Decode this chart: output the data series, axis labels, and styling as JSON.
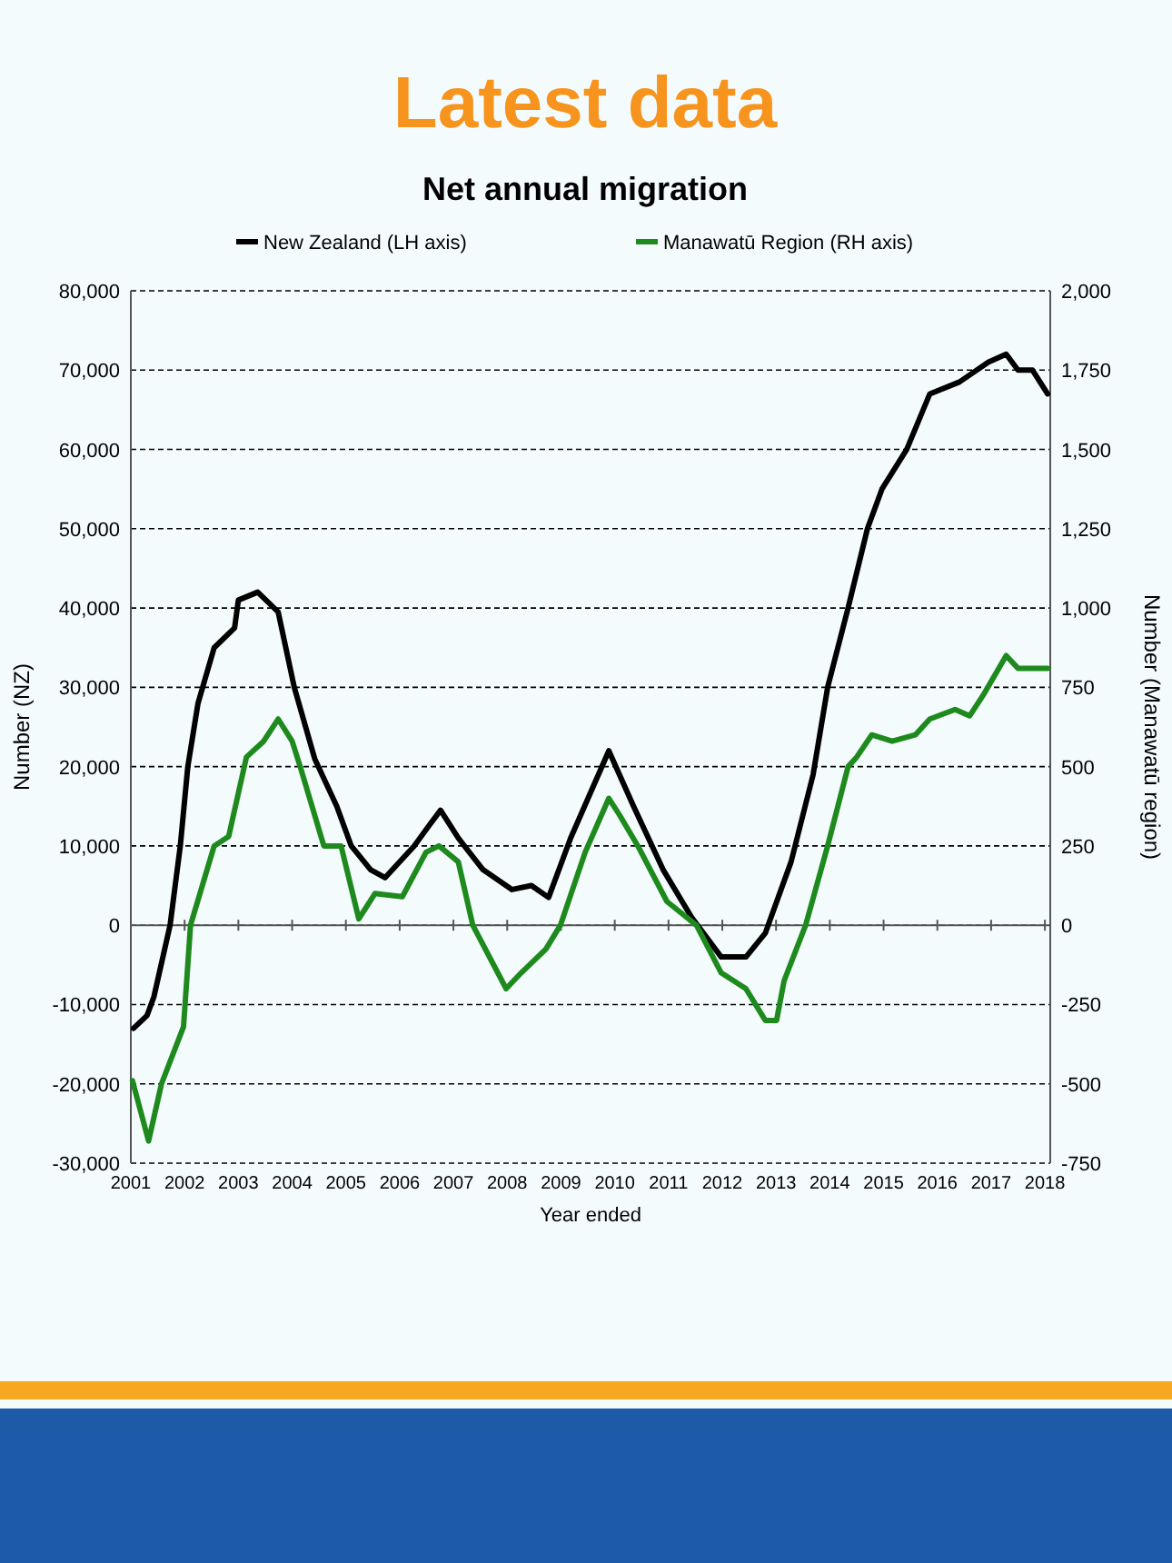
{
  "chart_data": {
    "type": "line",
    "title": "Latest data",
    "subtitle": "Net annual migration",
    "xlabel": "Year ended",
    "ylabel": "Number (NZ)",
    "y2label": "Number (Manawatū region)",
    "legend": "top",
    "grid": "y",
    "xlim": [
      2001,
      2018.1
    ],
    "xticks": [
      2001,
      2002,
      2003,
      2004,
      2005,
      2006,
      2007,
      2008,
      2009,
      2010,
      2011,
      2012,
      2013,
      2014,
      2015,
      2016,
      2017,
      2018
    ],
    "ylim": [
      -30000,
      80000
    ],
    "yticks": [
      {
        "value": -30000,
        "label": "-30,000"
      },
      {
        "value": -20000,
        "label": "-20,000"
      },
      {
        "value": -10000,
        "label": "-10,000"
      },
      0,
      {
        "value": 10000,
        "label": "10,000"
      },
      {
        "value": 20000,
        "label": "20,000"
      },
      {
        "value": 30000,
        "label": "30,000"
      },
      {
        "value": 40000,
        "label": "40,000"
      },
      {
        "value": 50000,
        "label": "50,000"
      },
      {
        "value": 60000,
        "label": "60,000"
      },
      {
        "value": 70000,
        "label": "70,000"
      },
      {
        "value": 80000,
        "label": "80,000"
      }
    ],
    "y2lim": [
      -750,
      2000
    ],
    "y2ticks": [
      -750,
      -500,
      -250,
      0,
      250,
      500,
      750,
      {
        "value": 1000,
        "label": "1,000"
      },
      {
        "value": 1250,
        "label": "1,250"
      },
      {
        "value": 1500,
        "label": "1,500"
      },
      {
        "value": 1750,
        "label": "1,750"
      },
      {
        "value": 2000,
        "label": "2,000"
      }
    ],
    "series": [
      {
        "name": "New Zealand (LH axis)",
        "color": "#000000",
        "x": [
          2001.05,
          2001.3,
          2001.43,
          2001.73,
          2001.92,
          2002.06,
          2002.25,
          2002.55,
          2002.93,
          2003.0,
          2003.36,
          2003.74,
          2004.04,
          2004.42,
          2004.83,
          2005.1,
          2005.46,
          2005.73,
          2006.27,
          2006.54,
          2006.76,
          2007.09,
          2007.55,
          2008.09,
          2008.45,
          2008.77,
          2009.18,
          2009.89,
          2010.35,
          2010.9,
          2011.43,
          2011.98,
          2012.44,
          2012.8,
          2013.28,
          2013.69,
          2013.96,
          2014.34,
          2014.7,
          2014.97,
          2015.43,
          2015.86,
          2016.41,
          2016.95,
          2017.28,
          2017.5,
          2017.77,
          2018.05
        ],
        "values": [
          -13000,
          -11400,
          -9000,
          0,
          10000,
          20000,
          28000,
          35000,
          37500,
          41000,
          42000,
          39500,
          30000,
          21000,
          15000,
          10000,
          7000,
          6000,
          10000,
          12500,
          14500,
          11000,
          7000,
          4500,
          5000,
          3500,
          11000,
          22000,
          15000,
          7000,
          1000,
          -4000,
          -4000,
          -1000,
          8000,
          19000,
          30000,
          40000,
          50000,
          55000,
          60000,
          67000,
          68500,
          71000,
          72000,
          70000,
          70000,
          67000
        ]
      },
      {
        "name": "Manawatū Region (RH axis)",
        "color": "#1e8a1e",
        "axis": "y2",
        "x": [
          2001.03,
          2001.33,
          2001.57,
          2001.98,
          2002.11,
          2002.55,
          2002.82,
          2003.15,
          2003.47,
          2003.74,
          2004.0,
          2004.15,
          2004.59,
          2004.91,
          2005.24,
          2005.54,
          2006.05,
          2006.49,
          2006.73,
          2007.09,
          2007.36,
          2007.98,
          2008.26,
          2008.72,
          2008.99,
          2009.45,
          2009.89,
          2010.08,
          2010.43,
          2010.97,
          2011.52,
          2011.98,
          2012.44,
          2012.8,
          2013.01,
          2013.15,
          2013.55,
          2013.96,
          2014.34,
          2014.5,
          2014.78,
          2015.16,
          2015.59,
          2015.86,
          2016.33,
          2016.6,
          2016.87,
          2017.28,
          2017.5,
          2017.77,
          2018.05
        ],
        "values": [
          -490,
          -680,
          -500,
          -320,
          0,
          250,
          280,
          530,
          580,
          650,
          580,
          500,
          250,
          250,
          20,
          100,
          90,
          230,
          250,
          200,
          0,
          -200,
          -150,
          -75,
          0,
          230,
          400,
          350,
          250,
          75,
          0,
          -150,
          -200,
          -300,
          -300,
          -175,
          0,
          250,
          500,
          530,
          600,
          580,
          600,
          650,
          680,
          660,
          730,
          850,
          810,
          810,
          810
        ]
      }
    ]
  }
}
